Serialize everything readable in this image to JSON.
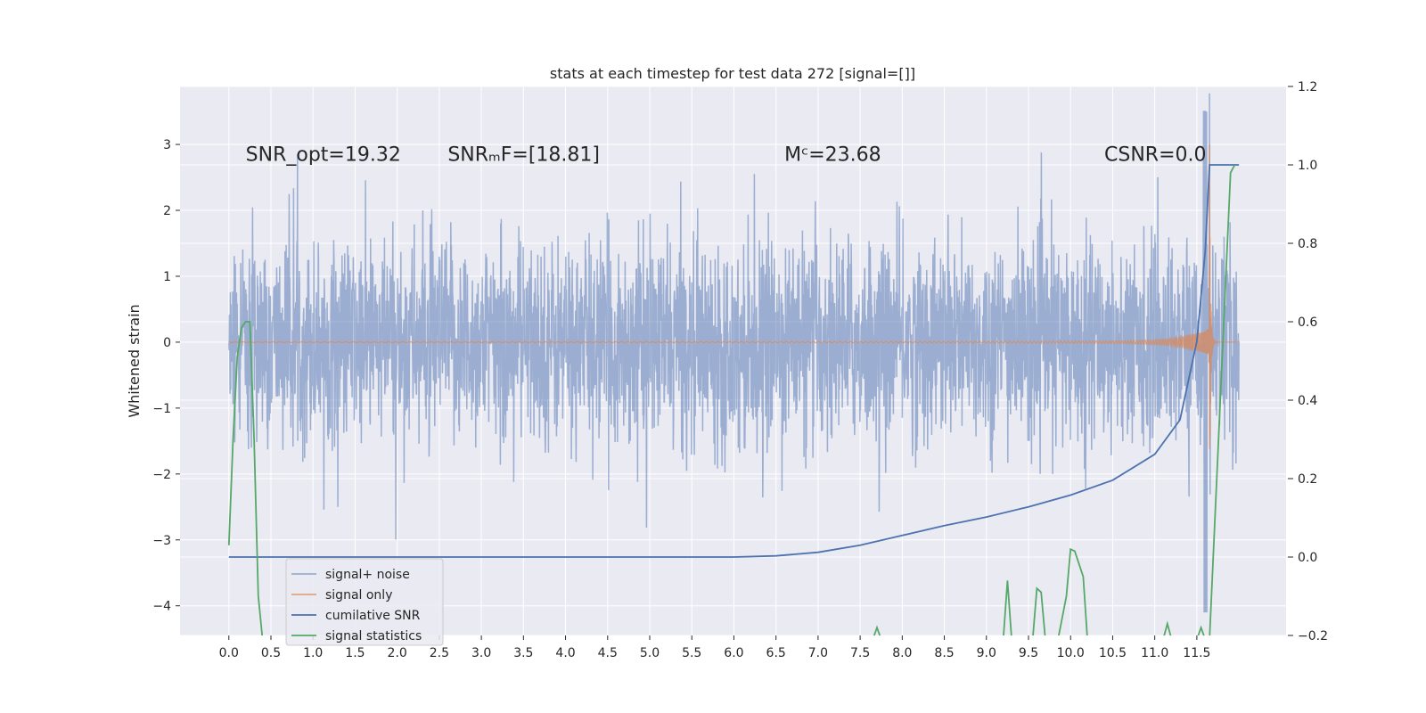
{
  "chart_data": {
    "type": "line",
    "title": "stats at each timestep for test data 272 [signal=[]]",
    "xlabel": "",
    "ylabel": "Whitened strain",
    "y2label": "",
    "xlim": [
      -0.58,
      12.56
    ],
    "ylim": [
      -4.45,
      3.88
    ],
    "y2lim": [
      -0.2,
      1.2
    ],
    "xticks": [
      0.0,
      0.5,
      1.0,
      1.5,
      2.0,
      2.5,
      3.0,
      3.5,
      4.0,
      4.5,
      5.0,
      5.5,
      6.0,
      6.5,
      7.0,
      7.5,
      8.0,
      8.5,
      9.0,
      9.5,
      10.0,
      10.5,
      11.0,
      11.5
    ],
    "xtick_labels": [
      "0.0",
      "0.5",
      "1.0",
      "1.5",
      "2.0",
      "2.5",
      "3.0",
      "3.5",
      "4.0",
      "4.5",
      "5.0",
      "5.5",
      "6.0",
      "6.5",
      "7.0",
      "7.5",
      "8.0",
      "8.5",
      "9.0",
      "9.5",
      "10.0",
      "10.5",
      "11.0",
      "11.5"
    ],
    "yticks": [
      -4,
      -3,
      -2,
      -1,
      0,
      1,
      2,
      3
    ],
    "ytick_labels": [
      "−4",
      "−3",
      "−2",
      "−1",
      "0",
      "1",
      "2",
      "3"
    ],
    "y2ticks": [
      -0.2,
      0.0,
      0.2,
      0.4,
      0.6,
      0.8,
      1.0,
      1.2
    ],
    "y2tick_labels": [
      "−0.2",
      "0.0",
      "0.2",
      "0.4",
      "0.6",
      "0.8",
      "1.0",
      "1.2"
    ],
    "grid": true,
    "legend_position": "lower-left",
    "annotations": [
      {
        "text": "SNR_opt=19.32",
        "x": 0.2,
        "y": 2.75
      },
      {
        "text": "SNRₘF=[18.81]",
        "x": 2.6,
        "y": 2.75
      },
      {
        "text": "Mᶜ=23.68",
        "x": 6.6,
        "y": 2.75
      },
      {
        "text": "CSNR=0.0",
        "x": 10.4,
        "y": 2.75
      }
    ],
    "series": [
      {
        "name": "signal+ noise",
        "axis": "left",
        "color": "#4c72b0",
        "opacity": 0.5,
        "description": "Gaussian whitened noise, roughly within [-2.2, 2.2] with spikes up to 3.3, plus the signal; 0.0–12.0 s",
        "x_range": [
          0.0,
          12.0
        ],
        "noise_std": 0.75,
        "peak_positive": 3.5,
        "peak_negative": -4.1
      },
      {
        "name": "signal only",
        "axis": "left",
        "color": "#dd8452",
        "opacity": 0.7,
        "description": "chirp waveform, amplitude grows toward merger at ~11.65 s then ring-down",
        "x_range": [
          0.0,
          12.0
        ],
        "merger_time": 11.65,
        "peak_positive": 3.2,
        "peak_negative": -3.4
      },
      {
        "name": "cumilative SNR",
        "axis": "right",
        "color": "#4c72b0",
        "opacity": 1.0,
        "x": [
          0.0,
          6.0,
          6.5,
          7.0,
          7.5,
          8.0,
          8.5,
          9.0,
          9.5,
          10.0,
          10.5,
          11.0,
          11.3,
          11.5,
          11.6,
          11.65,
          11.7,
          12.0
        ],
        "values": [
          0.0,
          0.0,
          0.003,
          0.012,
          0.03,
          0.055,
          0.08,
          0.102,
          0.128,
          0.158,
          0.196,
          0.262,
          0.35,
          0.55,
          0.78,
          1.0,
          1.0,
          1.0
        ]
      },
      {
        "name": "signal statistics",
        "axis": "right",
        "color": "#55a868",
        "opacity": 1.0,
        "x": [
          0.0,
          0.05,
          0.1,
          0.15,
          0.2,
          0.25,
          0.3,
          0.35,
          0.4,
          0.45,
          7.65,
          7.7,
          7.75,
          9.2,
          9.25,
          9.3,
          9.55,
          9.6,
          9.65,
          9.7,
          9.85,
          9.95,
          10.0,
          10.05,
          10.15,
          10.2,
          10.25,
          10.35,
          11.1,
          11.15,
          11.2,
          11.5,
          11.55,
          11.6,
          11.65,
          11.9,
          11.95
        ],
        "values": [
          0.03,
          0.3,
          0.51,
          0.585,
          0.6,
          0.6,
          0.3,
          -0.1,
          -0.21,
          -0.21,
          -0.21,
          -0.18,
          -0.21,
          -0.21,
          -0.06,
          -0.21,
          -0.21,
          -0.08,
          -0.09,
          -0.21,
          -0.21,
          -0.1,
          0.02,
          0.015,
          -0.05,
          -0.21,
          -0.21,
          -0.21,
          -0.21,
          -0.17,
          -0.21,
          -0.21,
          -0.18,
          -0.21,
          -0.21,
          0.98,
          1.0
        ]
      }
    ]
  },
  "colors": {
    "plot_background": "#eaeaf2",
    "grid": "#ffffff",
    "legend_background": "#eaeaf2"
  }
}
